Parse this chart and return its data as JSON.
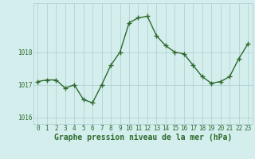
{
  "x": [
    0,
    1,
    2,
    3,
    4,
    5,
    6,
    7,
    8,
    9,
    10,
    11,
    12,
    13,
    14,
    15,
    16,
    17,
    18,
    19,
    20,
    21,
    22,
    23
  ],
  "y": [
    1017.1,
    1017.15,
    1017.15,
    1016.9,
    1017.0,
    1016.55,
    1016.45,
    1017.0,
    1017.6,
    1018.0,
    1018.9,
    1019.05,
    1019.1,
    1018.5,
    1018.2,
    1018.0,
    1017.95,
    1017.6,
    1017.25,
    1017.05,
    1017.1,
    1017.25,
    1017.8,
    1018.25
  ],
  "line_color": "#2d6a2d",
  "marker_color": "#2d6a2d",
  "bg_color": "#d4eeed",
  "grid_color": "#a8cece",
  "xlabel": "Graphe pression niveau de la mer (hPa)",
  "ylabel": "",
  "ylim": [
    1015.8,
    1019.5
  ],
  "xlim": [
    -0.5,
    23.5
  ],
  "yticks": [
    1016,
    1017,
    1018
  ],
  "xticks": [
    0,
    1,
    2,
    3,
    4,
    5,
    6,
    7,
    8,
    9,
    10,
    11,
    12,
    13,
    14,
    15,
    16,
    17,
    18,
    19,
    20,
    21,
    22,
    23
  ],
  "tick_label_fontsize": 5.5,
  "xlabel_fontsize": 7.0,
  "line_width": 1.0,
  "marker_size": 4
}
